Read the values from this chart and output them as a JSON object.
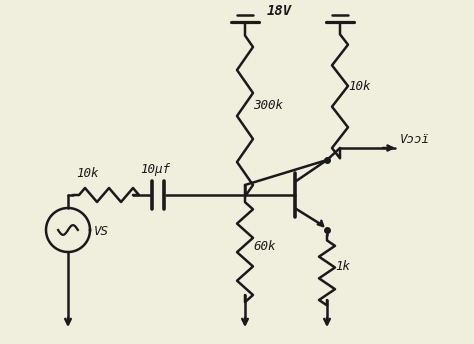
{
  "bg_color": "#f0eedc",
  "line_color": "#1a1a1a",
  "lw": 1.8,
  "labels": {
    "vcc": "18V",
    "r300k": "300k",
    "r10k_c": "10k",
    "r10k_in": "10k",
    "r60k": "60k",
    "r1k": "1k",
    "cap": "10μf",
    "vout": "Vɔɔї",
    "vs": "VS"
  },
  "fig_w": 4.74,
  "fig_h": 3.44,
  "dpi": 100
}
